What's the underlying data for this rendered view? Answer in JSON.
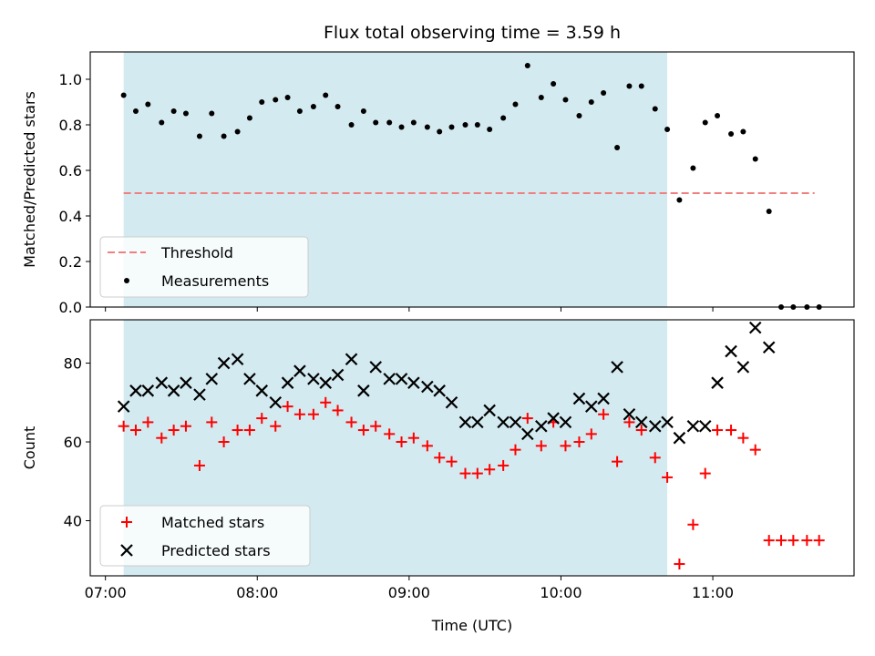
{
  "chart_data": [
    {
      "type": "scatter",
      "title": "Flux total observing time = 3.59 h",
      "xlabel": "",
      "ylabel": "Matched/Predicted stars",
      "x_range_hours": [
        6.9,
        11.93
      ],
      "ylim": [
        0,
        1.12
      ],
      "yticks": [
        0.0,
        0.2,
        0.4,
        0.6,
        0.8,
        1.0
      ],
      "ytick_labels": [
        "0.0",
        "0.2",
        "0.4",
        "0.6",
        "0.8",
        "1.0"
      ],
      "xticks_hours": [
        7,
        8,
        9,
        10,
        11
      ],
      "xtick_labels": [],
      "shaded_span_hours": [
        7.12,
        10.7
      ],
      "shaded_color": "#d3eaf0",
      "legend_position": "lower-left",
      "legend": [
        "Threshold",
        "Measurements"
      ],
      "threshold": {
        "name": "Threshold",
        "value": 0.5,
        "x_range_hours": [
          7.12,
          11.67
        ],
        "color": "#f08080"
      },
      "series": [
        {
          "name": "Measurements",
          "marker": "dot",
          "color": "#000000",
          "x_hours": [
            7.12,
            7.2,
            7.28,
            7.37,
            7.45,
            7.53,
            7.62,
            7.7,
            7.78,
            7.87,
            7.95,
            8.03,
            8.12,
            8.2,
            8.28,
            8.37,
            8.45,
            8.53,
            8.62,
            8.7,
            8.78,
            8.87,
            8.95,
            9.03,
            9.12,
            9.2,
            9.28,
            9.37,
            9.45,
            9.53,
            9.62,
            9.7,
            9.78,
            9.87,
            9.95,
            10.03,
            10.12,
            10.2,
            10.28,
            10.37,
            10.45,
            10.53,
            10.62,
            10.7,
            10.78,
            10.87,
            10.95,
            11.03,
            11.12,
            11.2,
            11.28,
            11.37,
            11.45,
            11.53,
            11.62,
            11.7
          ],
          "values": [
            0.93,
            0.86,
            0.89,
            0.81,
            0.86,
            0.85,
            0.75,
            0.85,
            0.75,
            0.77,
            0.83,
            0.9,
            0.91,
            0.92,
            0.86,
            0.88,
            0.93,
            0.88,
            0.8,
            0.86,
            0.81,
            0.81,
            0.79,
            0.81,
            0.79,
            0.77,
            0.79,
            0.8,
            0.8,
            0.78,
            0.83,
            0.89,
            1.06,
            0.92,
            0.98,
            0.91,
            0.84,
            0.9,
            0.94,
            0.7,
            0.97,
            0.97,
            0.87,
            0.78,
            0.47,
            0.61,
            0.81,
            0.84,
            0.76,
            0.77,
            0.65,
            0.42,
            0.0,
            0.0,
            0.0,
            0.0
          ]
        }
      ]
    },
    {
      "type": "scatter",
      "title": "",
      "xlabel": "Time (UTC)",
      "ylabel": "Count",
      "x_range_hours": [
        6.9,
        11.93
      ],
      "ylim": [
        26,
        91
      ],
      "yticks": [
        40,
        60,
        80
      ],
      "ytick_labels": [
        "40",
        "60",
        "80"
      ],
      "xticks_hours": [
        7,
        8,
        9,
        10,
        11
      ],
      "xtick_labels": [
        "07:00",
        "08:00",
        "09:00",
        "10:00",
        "11:00"
      ],
      "shaded_span_hours": [
        7.12,
        10.7
      ],
      "shaded_color": "#d3eaf0",
      "legend_position": "lower-left",
      "legend": [
        "Matched stars",
        "Predicted stars"
      ],
      "series": [
        {
          "name": "Matched stars",
          "marker": "plus",
          "color": "#ff0000",
          "x_hours": [
            7.12,
            7.2,
            7.28,
            7.37,
            7.45,
            7.53,
            7.62,
            7.7,
            7.78,
            7.87,
            7.95,
            8.03,
            8.12,
            8.2,
            8.28,
            8.37,
            8.45,
            8.53,
            8.62,
            8.7,
            8.78,
            8.87,
            8.95,
            9.03,
            9.12,
            9.2,
            9.28,
            9.37,
            9.45,
            9.53,
            9.62,
            9.7,
            9.78,
            9.87,
            9.95,
            10.03,
            10.12,
            10.2,
            10.28,
            10.37,
            10.45,
            10.53,
            10.62,
            10.7,
            10.78,
            10.87,
            10.95,
            11.03,
            11.12,
            11.2,
            11.28,
            11.37,
            11.45,
            11.53,
            11.62,
            11.7
          ],
          "values": [
            64,
            63,
            65,
            61,
            63,
            64,
            54,
            65,
            60,
            63,
            63,
            66,
            64,
            69,
            67,
            67,
            70,
            68,
            65,
            63,
            64,
            62,
            60,
            61,
            59,
            56,
            55,
            52,
            52,
            53,
            54,
            58,
            66,
            59,
            65,
            59,
            60,
            62,
            67,
            55,
            65,
            63,
            56,
            51,
            29,
            39,
            52,
            63,
            63,
            61,
            58,
            35,
            35,
            35,
            35,
            35
          ]
        },
        {
          "name": "Predicted stars",
          "marker": "x",
          "color": "#000000",
          "x_hours": [
            7.12,
            7.2,
            7.28,
            7.37,
            7.45,
            7.53,
            7.62,
            7.7,
            7.78,
            7.87,
            7.95,
            8.03,
            8.12,
            8.2,
            8.28,
            8.37,
            8.45,
            8.53,
            8.62,
            8.7,
            8.78,
            8.87,
            8.95,
            9.03,
            9.12,
            9.2,
            9.28,
            9.37,
            9.45,
            9.53,
            9.62,
            9.7,
            9.78,
            9.87,
            9.95,
            10.03,
            10.12,
            10.2,
            10.28,
            10.37,
            10.45,
            10.53,
            10.62,
            10.7,
            10.78,
            10.87,
            10.95,
            11.03,
            11.12,
            11.2,
            11.28,
            11.37
          ],
          "values": [
            69,
            73,
            73,
            75,
            73,
            75,
            72,
            76,
            80,
            81,
            76,
            73,
            70,
            75,
            78,
            76,
            75,
            77,
            81,
            73,
            79,
            76,
            76,
            75,
            74,
            73,
            70,
            65,
            65,
            68,
            65,
            65,
            62,
            64,
            66,
            65,
            71,
            69,
            71,
            79,
            67,
            65,
            64,
            65,
            61,
            64,
            64,
            75,
            83,
            79,
            89,
            84
          ]
        }
      ]
    }
  ]
}
